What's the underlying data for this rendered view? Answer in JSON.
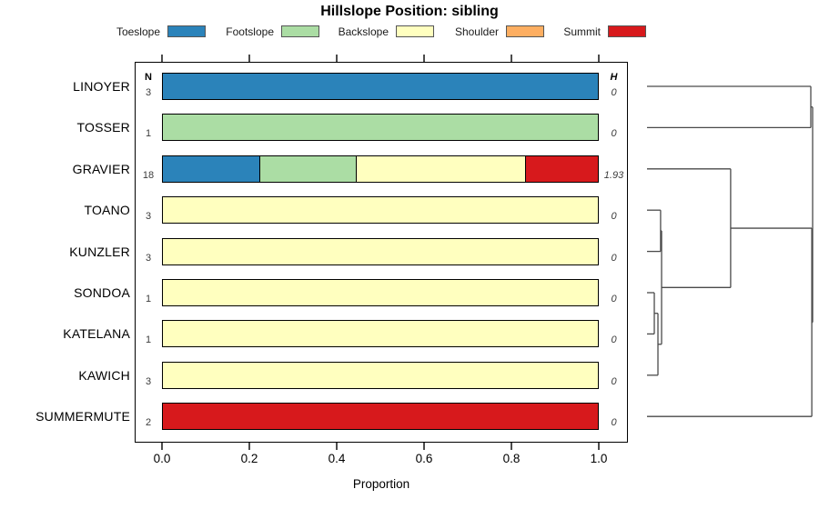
{
  "title": "Hillslope Position: sibling",
  "legend": {
    "items": [
      {
        "label": "Toeslope",
        "color": "#2B83BA"
      },
      {
        "label": "Footslope",
        "color": "#ABDDA4"
      },
      {
        "label": "Backslope",
        "color": "#FFFFBF"
      },
      {
        "label": "Shoulder",
        "color": "#FDAE61"
      },
      {
        "label": "Summit",
        "color": "#D7191C"
      }
    ]
  },
  "columns": {
    "n_header": "N",
    "h_header": "H"
  },
  "x_axis": {
    "label": "Proportion",
    "tick_labels": [
      "0.0",
      "0.2",
      "0.4",
      "0.6",
      "0.8",
      "1.0"
    ]
  },
  "chart_data": {
    "type": "bar",
    "stacked": true,
    "orientation": "horizontal",
    "title": "Hillslope Position: sibling",
    "xlabel": "Proportion",
    "xlim": [
      0,
      1
    ],
    "xticks": [
      0,
      0.2,
      0.4,
      0.6,
      0.8,
      1
    ],
    "grid": false,
    "legend_position": "top",
    "categories": [
      "Toeslope",
      "Footslope",
      "Backslope",
      "Shoulder",
      "Summit"
    ],
    "colors": [
      "#2B83BA",
      "#ABDDA4",
      "#FFFFBF",
      "#FDAE61",
      "#D7191C"
    ],
    "rows": [
      {
        "series": "LINOYER",
        "n": 3,
        "h": "0",
        "proportions": [
          1,
          0,
          0,
          0,
          0
        ]
      },
      {
        "series": "TOSSER",
        "n": 1,
        "h": "0",
        "proportions": [
          0,
          1,
          0,
          0,
          0
        ]
      },
      {
        "series": "GRAVIER",
        "n": 18,
        "h": "1.93",
        "proportions": [
          0.222,
          0.222,
          0.389,
          0,
          0.167
        ]
      },
      {
        "series": "TOANO",
        "n": 3,
        "h": "0",
        "proportions": [
          0,
          0,
          1,
          0,
          0
        ]
      },
      {
        "series": "KUNZLER",
        "n": 3,
        "h": "0",
        "proportions": [
          0,
          0,
          1,
          0,
          0
        ]
      },
      {
        "series": "SONDOA",
        "n": 1,
        "h": "0",
        "proportions": [
          0,
          0,
          1,
          0,
          0
        ]
      },
      {
        "series": "KATELANA",
        "n": 1,
        "h": "0",
        "proportions": [
          0,
          0,
          1,
          0,
          0
        ]
      },
      {
        "series": "KAWICH",
        "n": 3,
        "h": "0",
        "proportions": [
          0,
          0,
          1,
          0,
          0
        ]
      },
      {
        "series": "SUMMERMUTE",
        "n": 2,
        "h": "0",
        "proportions": [
          0,
          0,
          0,
          0,
          1
        ]
      }
    ],
    "dendrogram": {
      "note": "distances normalized 0 (leaf) to 1 (root)",
      "tree": {
        "d": 1.0,
        "c": [
          {
            "d": 0.989,
            "c": [
              "LINOYER",
              "TOSSER"
            ]
          },
          {
            "d": 0.995,
            "c": [
              {
                "d": 0.505,
                "c": [
                  "GRAVIER",
                  {
                    "d": 0.088,
                    "c": [
                      {
                        "d": 0.082,
                        "c": [
                          "TOANO",
                          "KUNZLER"
                        ]
                      },
                      {
                        "d": 0.066,
                        "c": [
                          {
                            "d": 0.044,
                            "c": [
                              "SONDOA",
                              "KATELANA"
                            ]
                          },
                          "KAWICH"
                        ]
                      }
                    ]
                  }
                ]
              },
              "SUMMERMUTE"
            ]
          }
        ]
      }
    }
  }
}
